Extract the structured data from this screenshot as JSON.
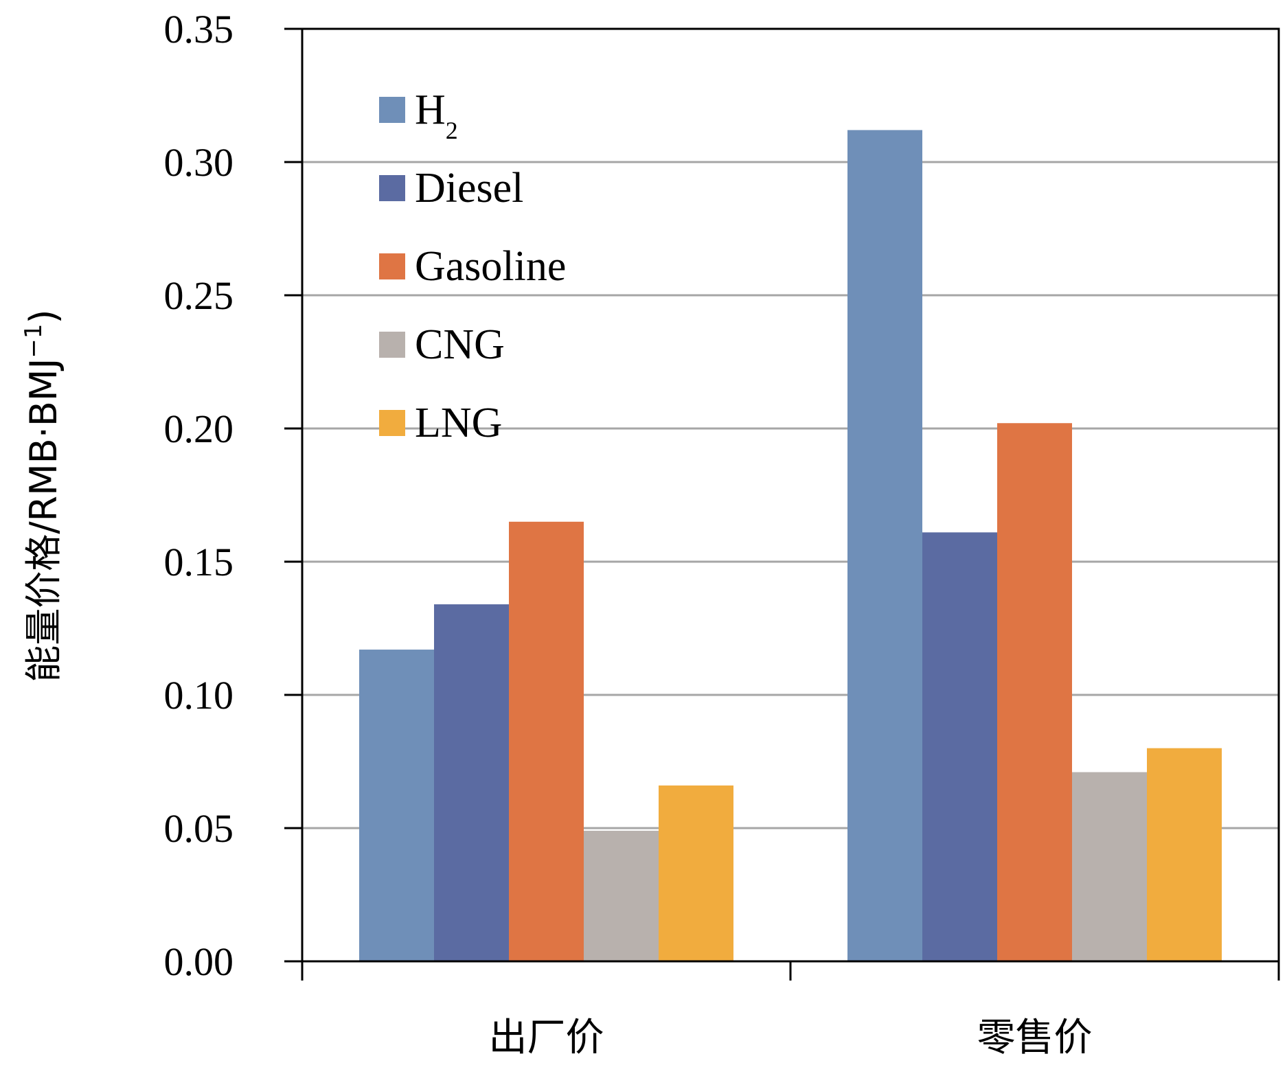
{
  "chart_data": {
    "type": "bar",
    "categories": [
      "出厂价",
      "零售价"
    ],
    "series": [
      {
        "name": "H",
        "subscript": "2",
        "color": "#6f8fb8",
        "values": [
          0.117,
          0.312
        ]
      },
      {
        "name": "Diesel",
        "color": "#5b6ba2",
        "values": [
          0.134,
          0.161
        ]
      },
      {
        "name": "Gasoline",
        "color": "#df7544",
        "values": [
          0.165,
          0.202
        ]
      },
      {
        "name": "CNG",
        "color": "#b8b1ad",
        "values": [
          0.049,
          0.071
        ]
      },
      {
        "name": "LNG",
        "color": "#f1ac3e",
        "values": [
          0.066,
          0.08
        ]
      }
    ],
    "ylabel": "能量价格/RMB·BMJ",
    "ylabel_sup": "−1",
    "ylabel_close": ")",
    "ylim": [
      0,
      0.35
    ],
    "yticks": [
      "0.00",
      "0.05",
      "0.10",
      "0.15",
      "0.20",
      "0.25",
      "0.30",
      "0.35"
    ],
    "grid": true,
    "legend_position": "top-left inside"
  }
}
